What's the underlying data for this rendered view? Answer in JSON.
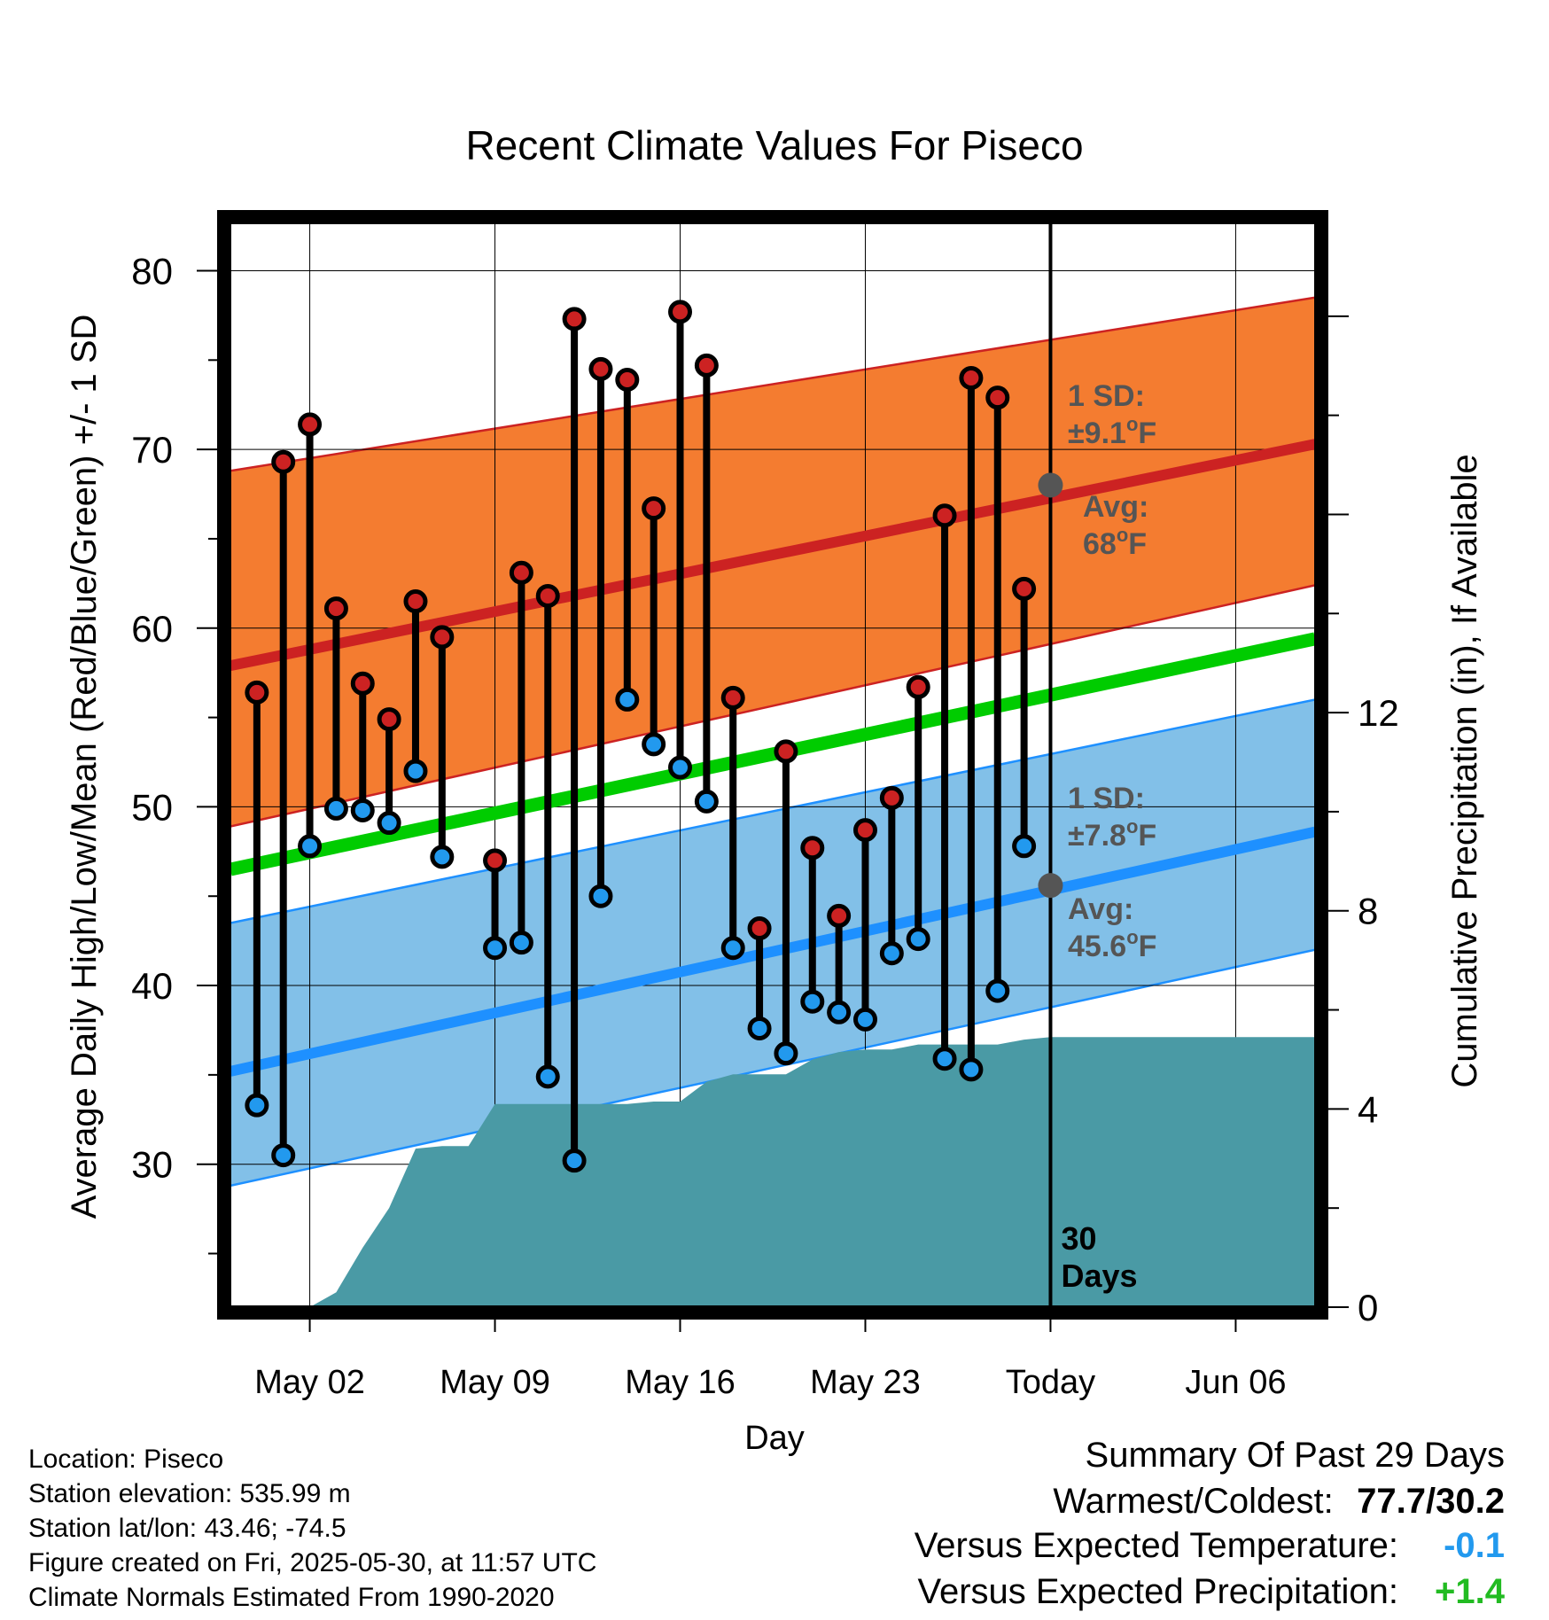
{
  "chart_data": {
    "type": "line",
    "title": "Recent Climate Values For Piseco",
    "xlabel": "Day",
    "ylabel": "Average Daily High/Low/Mean (Red/Blue/Green) +/- 1 SD",
    "y2label": "Cumulative Precipitation (in), If Available",
    "x_range_days": [
      -2,
      39
    ],
    "x_ticks": [
      {
        "day": 1,
        "label": "May 02"
      },
      {
        "day": 8,
        "label": "May 09"
      },
      {
        "day": 15,
        "label": "May 16"
      },
      {
        "day": 22,
        "label": "May 23"
      },
      {
        "day": 29,
        "label": "Today"
      },
      {
        "day": 36,
        "label": "Jun 06"
      }
    ],
    "ylim": [
      22,
      83
    ],
    "y_ticks": [
      30,
      40,
      50,
      60,
      70,
      80
    ],
    "y2lim": [
      0,
      22
    ],
    "y2_ticks": [
      0,
      4,
      8,
      12
    ],
    "daily_observations": {
      "day": [
        -1,
        0,
        1,
        2,
        3,
        4,
        5,
        6,
        8,
        9,
        10,
        11,
        12,
        13,
        14,
        15,
        16,
        17,
        18,
        19,
        20,
        21,
        22,
        23,
        24,
        25,
        26,
        27,
        28
      ],
      "high": [
        56.4,
        69.3,
        71.4,
        61.1,
        56.9,
        54.9,
        61.5,
        59.5,
        47.0,
        63.1,
        61.8,
        77.3,
        74.5,
        73.9,
        66.7,
        77.7,
        74.7,
        56.1,
        43.2,
        53.1,
        47.7,
        43.9,
        48.7,
        50.5,
        56.7,
        66.3,
        74.0,
        72.9,
        62.2
      ],
      "low": [
        33.3,
        30.5,
        47.8,
        49.9,
        49.8,
        49.1,
        52.0,
        47.2,
        42.1,
        42.4,
        34.9,
        30.2,
        45.0,
        56.0,
        53.5,
        52.2,
        50.3,
        42.1,
        37.6,
        36.2,
        39.1,
        38.5,
        38.1,
        41.8,
        42.6,
        35.9,
        35.3,
        39.7,
        47.8
      ]
    },
    "normals": {
      "day": [
        -2,
        39
      ],
      "avg_high": [
        57.9,
        70.3
      ],
      "avg_high_sd_upper": [
        68.8,
        78.5
      ],
      "avg_high_sd_lower": [
        48.9,
        62.4
      ],
      "avg_mean": [
        46.5,
        59.4
      ],
      "avg_low": [
        35.2,
        48.6
      ],
      "avg_low_sd_upper": [
        43.5,
        56.0
      ],
      "avg_low_sd_lower": [
        28.8,
        42.0
      ]
    },
    "precip_cumulative": {
      "day": [
        1,
        2,
        3,
        4,
        5,
        6,
        7,
        8,
        9,
        13,
        14,
        15,
        16,
        17,
        18,
        19,
        20,
        21,
        22,
        23,
        24,
        25,
        26,
        27,
        28,
        29,
        30,
        38
      ],
      "inches": [
        0,
        0.3,
        1.2,
        2.0,
        3.2,
        3.25,
        3.25,
        4.1,
        4.1,
        4.1,
        4.15,
        4.15,
        4.55,
        4.7,
        4.7,
        4.7,
        5.0,
        5.15,
        5.2,
        5.2,
        5.3,
        5.3,
        5.3,
        5.3,
        5.4,
        5.45,
        5.45,
        5.45
      ]
    },
    "today_marker": {
      "day": 29,
      "label_line1": "30",
      "label_line2": "Days"
    },
    "annotations": {
      "high_sd_line1": "1 SD:",
      "high_sd_line2": "±9.1",
      "high_avg_line1": "Avg:",
      "high_avg_line2": "68",
      "low_sd_line1": "1 SD:",
      "low_sd_line2": "±7.8",
      "low_avg_line1": "Avg:",
      "low_avg_line2": "45.6",
      "degree_symbol": "o",
      "unit": "F",
      "today_avg_high": 68.0,
      "today_avg_low": 45.6
    },
    "colors": {
      "high_point": "#cc2222",
      "low_point": "#2299ee",
      "high_band": "#f47c30",
      "high_avg_line": "#cc2222",
      "low_band": "#82c0e8",
      "low_avg_line": "#1e90ff",
      "mean_line": "#00cc00",
      "precip_area": "#4a9aa5",
      "annotation_text": "#555555"
    }
  },
  "info": {
    "location": "Location: Piseco",
    "elevation": "Station elevation: 535.99 m",
    "latlon": "Station lat/lon: 43.46; -74.5",
    "created": "Figure created on Fri, 2025-05-30, at 11:57 UTC",
    "normals": "Climate Normals Estimated From 1990-2020"
  },
  "summary": {
    "title": "Summary Of Past 29 Days",
    "warmest_coldest_label": "Warmest/Coldest:",
    "warmest_coldest_value": "77.7/30.2",
    "temp_label": "Versus Expected Temperature:",
    "temp_value": "-0.1",
    "temp_color": "#2299ee",
    "precip_label": "Versus Expected Precipitation:",
    "precip_value": "+1.4",
    "precip_color": "#22bb22"
  }
}
